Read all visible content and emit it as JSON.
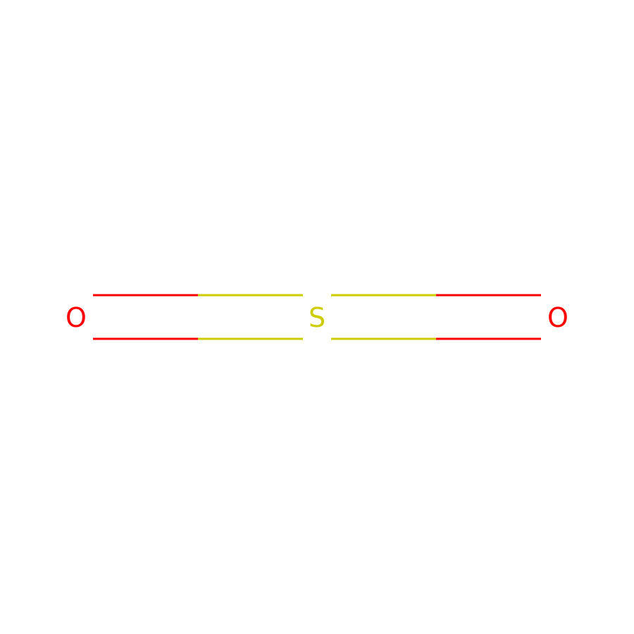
{
  "molecule": {
    "atoms": [
      {
        "id": "O1",
        "label": "O",
        "color": "#FF0000"
      },
      {
        "id": "S1",
        "label": "S",
        "color": "#CCCC00"
      },
      {
        "id": "O2",
        "label": "O",
        "color": "#FF0000"
      }
    ],
    "bonds": [
      {
        "from": "O1",
        "to": "S1",
        "order": 2
      },
      {
        "from": "S1",
        "to": "O2",
        "order": 2
      }
    ]
  }
}
